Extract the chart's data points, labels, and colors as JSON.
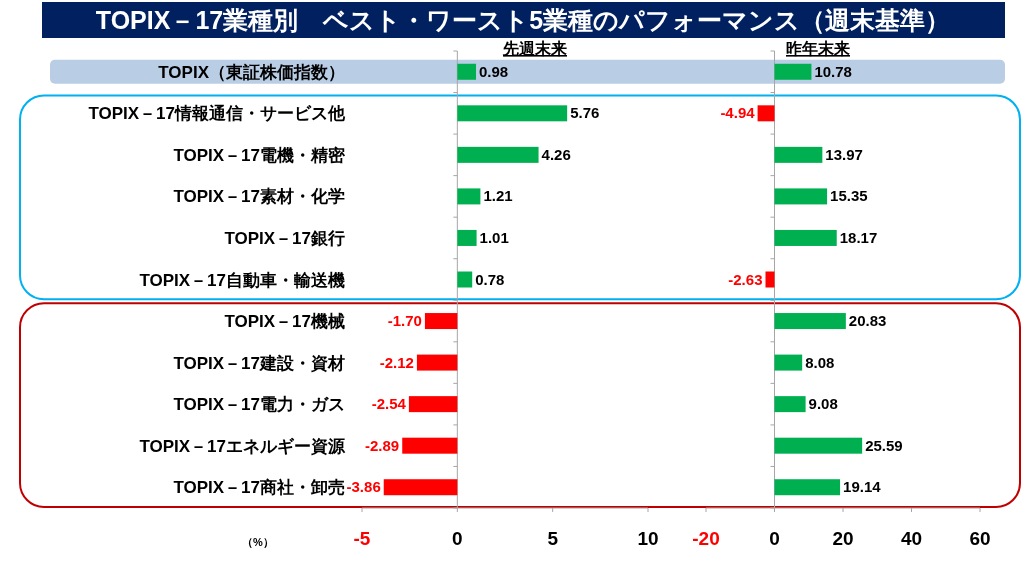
{
  "chart_data": [
    {
      "type": "bar",
      "orientation": "horizontal",
      "title": "TOPIX－17業種別　ベスト・ワースト5業種のパフォーマンス（週末基準）",
      "subtitle": "先週末来",
      "xlabel": "（%）",
      "categories": [
        "TOPIX（東証株価指数）",
        "TOPIX－17情報通信・サービス他",
        "TOPIX－17電機・精密",
        "TOPIX－17素材・化学",
        "TOPIX－17銀行",
        "TOPIX－17自動車・輸送機",
        "TOPIX－17機械",
        "TOPIX－17建設・資材",
        "TOPIX－17電力・ガス",
        "TOPIX－17エネルギー資源",
        "TOPIX－17商社・卸売"
      ],
      "values": [
        0.98,
        5.76,
        4.26,
        1.21,
        1.01,
        0.78,
        -1.7,
        -2.12,
        -2.54,
        -2.89,
        -3.86
      ],
      "value_labels": [
        "0.98",
        "5.76",
        "4.26",
        "1.21",
        "1.01",
        "0.78",
        "-1.70",
        "-2.12",
        "-2.54",
        "-2.89",
        "-3.86"
      ],
      "colors": [
        "#00b050",
        "#00b050",
        "#00b050",
        "#00b050",
        "#00b050",
        "#00b050",
        "#ff0000",
        "#ff0000",
        "#ff0000",
        "#ff0000",
        "#ff0000"
      ],
      "xlim": [
        -5,
        10
      ],
      "xticks": [
        -5,
        0,
        5,
        10
      ],
      "bands": [
        {
          "axis": "y",
          "from": "TOPIX（東証株価指数）",
          "to": "TOPIX（東証株価指数）",
          "color": "#b9cde5"
        }
      ]
    },
    {
      "type": "bar",
      "orientation": "horizontal",
      "subtitle": "昨年末来",
      "categories": [
        "TOPIX（東証株価指数）",
        "TOPIX－17情報通信・サービス他",
        "TOPIX－17電機・精密",
        "TOPIX－17素材・化学",
        "TOPIX－17銀行",
        "TOPIX－17自動車・輸送機",
        "TOPIX－17機械",
        "TOPIX－17建設・資材",
        "TOPIX－17電力・ガス",
        "TOPIX－17エネルギー資源",
        "TOPIX－17商社・卸売"
      ],
      "values": [
        10.78,
        -4.94,
        13.97,
        15.35,
        18.17,
        -2.63,
        20.83,
        8.08,
        9.08,
        25.59,
        19.14
      ],
      "value_labels": [
        "10.78",
        "-4.94",
        "13.97",
        "15.35",
        "18.17",
        "-2.63",
        "20.83",
        "8.08",
        "9.08",
        "25.59",
        "19.14"
      ],
      "colors": [
        "#00b050",
        "#ff0000",
        "#00b050",
        "#00b050",
        "#00b050",
        "#ff0000",
        "#00b050",
        "#00b050",
        "#00b050",
        "#00b050",
        "#00b050"
      ],
      "xlim": [
        -20,
        60
      ],
      "xticks": [
        -20,
        0,
        20,
        40,
        60
      ],
      "tick_labels": "x"
    }
  ]
}
